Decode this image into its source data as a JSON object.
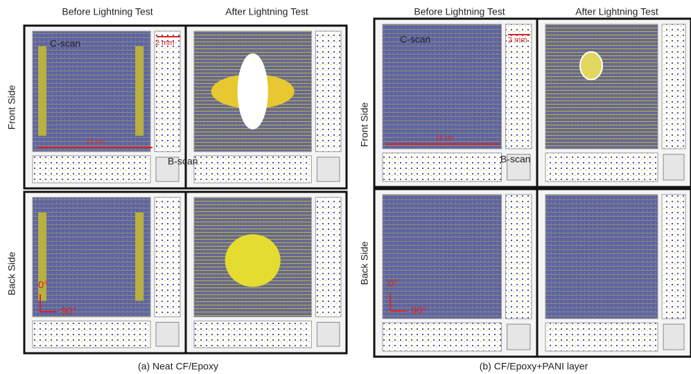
{
  "panels": [
    {
      "caption": "(a) Neat CF/Epoxy",
      "column_headers": [
        "Before Lightning Test",
        "After Lightning Test"
      ],
      "row_labels": [
        "Front Side",
        "Back Side"
      ],
      "annotations": {
        "c_scan": "C-scan",
        "b_scan": "B-scan",
        "scale_small": "2 mm",
        "scale_large": "15 cm",
        "angle_0": "0°",
        "angle_90": "90°"
      }
    },
    {
      "caption": "(b) CF/Epoxy+PANI layer",
      "column_headers": [
        "Before Lightning Test",
        "After Lightning Test"
      ],
      "row_labels": [
        "Front Side",
        "Back Side"
      ],
      "annotations": {
        "c_scan": "C-scan",
        "b_scan": "B-scan",
        "scale_small": "2 mm",
        "scale_large": "15 cm",
        "angle_0": "0°",
        "angle_90": "90°"
      }
    }
  ]
}
